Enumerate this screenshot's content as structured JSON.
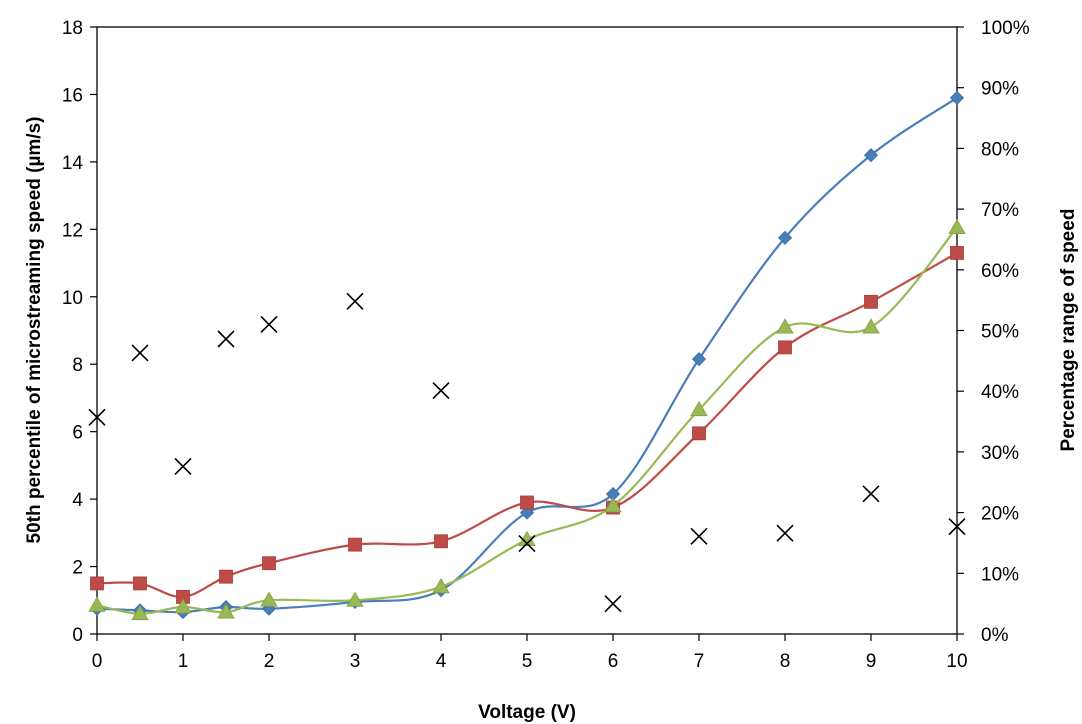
{
  "chart_data": {
    "type": "line",
    "xlabel": "Voltage (V)",
    "ylabel": "50th percentile  of microstreaming speed (µm/s)",
    "y2label": "Percentage range of speed",
    "xlim": [
      0,
      10
    ],
    "ylim": [
      0,
      18
    ],
    "y2lim": [
      0,
      1
    ],
    "x_ticks": [
      "0",
      "1",
      "2",
      "3",
      "4",
      "5",
      "6",
      "7",
      "8",
      "9",
      "10"
    ],
    "y_ticks": [
      "0",
      "2",
      "4",
      "6",
      "8",
      "10",
      "12",
      "14",
      "16",
      "18"
    ],
    "y2_ticks": [
      "0%",
      "10%",
      "20%",
      "30%",
      "40%",
      "50%",
      "60%",
      "70%",
      "80%",
      "90%",
      "100%"
    ],
    "grid": false,
    "legend": "none",
    "series": [
      {
        "marker": "diamond",
        "color": "#4a7ebb",
        "axis": "left",
        "x": [
          0,
          0.5,
          1,
          1.5,
          2,
          3,
          4,
          5,
          6,
          7,
          8,
          9,
          10
        ],
        "y": [
          0.75,
          0.7,
          0.65,
          0.8,
          0.75,
          0.95,
          1.3,
          3.6,
          4.15,
          8.15,
          11.75,
          14.2,
          15.9
        ]
      },
      {
        "marker": "square",
        "color": "#be4b48",
        "axis": "left",
        "x": [
          0,
          0.5,
          1,
          1.5,
          2,
          3,
          4,
          5,
          6,
          7,
          8,
          9,
          10
        ],
        "y": [
          1.5,
          1.5,
          1.1,
          1.7,
          2.1,
          2.65,
          2.75,
          3.9,
          3.75,
          5.95,
          8.5,
          9.85,
          11.3
        ]
      },
      {
        "marker": "triangle",
        "color": "#98b954",
        "axis": "left",
        "x": [
          0,
          0.5,
          1,
          1.5,
          2,
          3,
          4,
          5,
          6,
          7,
          8,
          9,
          10
        ],
        "y": [
          0.85,
          0.6,
          0.8,
          0.65,
          1.0,
          1.0,
          1.4,
          2.8,
          3.8,
          6.65,
          9.1,
          9.1,
          12.05
        ]
      },
      {
        "marker": "x",
        "color": "#000000",
        "axis": "right",
        "line": false,
        "x": [
          0,
          0.5,
          1,
          1.5,
          2,
          3,
          4,
          5,
          6,
          7,
          8,
          9,
          10
        ],
        "y": [
          0.357,
          0.463,
          0.276,
          0.486,
          0.51,
          0.548,
          0.401,
          0.149,
          0.05,
          0.161,
          0.166,
          0.231,
          0.177
        ]
      }
    ]
  }
}
